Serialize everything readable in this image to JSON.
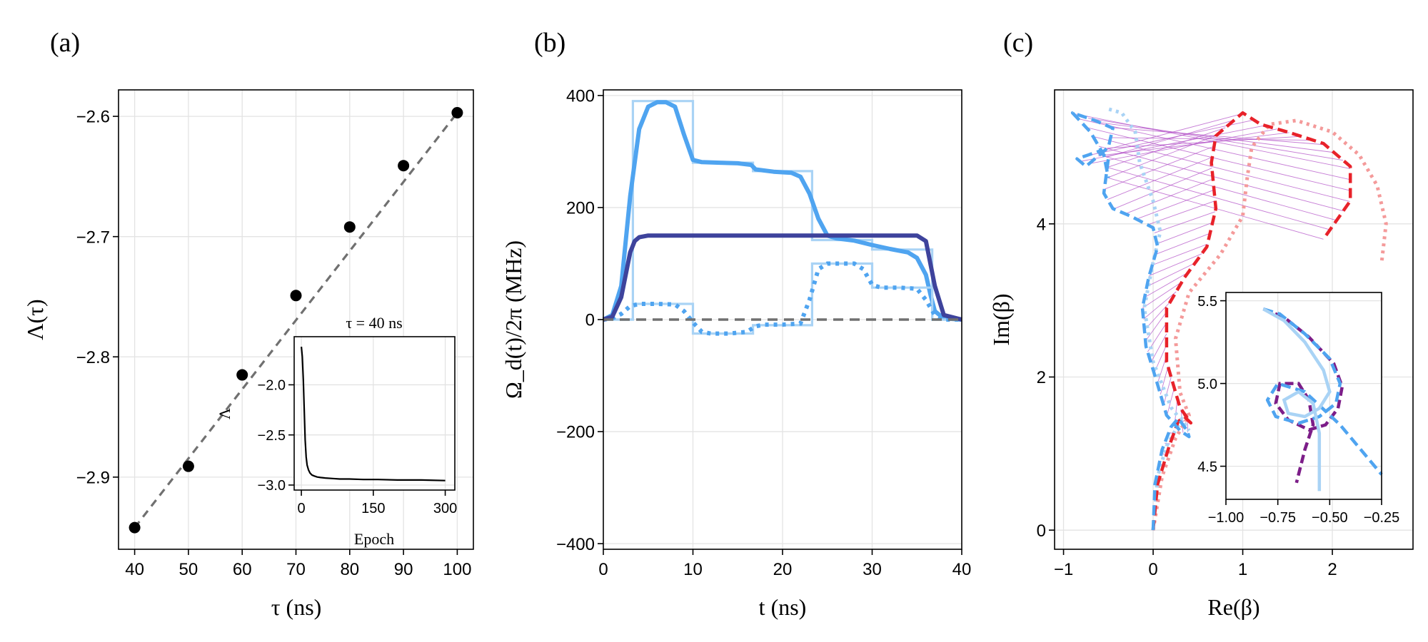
{
  "colors": {
    "blue": "#4fa4f0",
    "light_blue": "#a9d3f5",
    "dark_blue": "#3e439c",
    "red": "#e8222a",
    "light_red": "#f49a9a",
    "purple": "#7c1d88",
    "magenta_lines": "#b352c8",
    "gray_dash": "#707070"
  },
  "chart_data": [
    {
      "panel_label": "(a)",
      "type": "scatter",
      "xlabel": "τ (ns)",
      "ylabel": "Λ(τ)",
      "xlim": [
        37,
        103
      ],
      "ylim": [
        -2.96,
        -2.578
      ],
      "xticks": [
        40,
        50,
        60,
        70,
        80,
        90,
        100
      ],
      "xtick_labels": [
        "40",
        "50",
        "60",
        "70",
        "80",
        "90",
        "100"
      ],
      "yticks": [
        -2.9,
        -2.8,
        -2.7,
        -2.6
      ],
      "ytick_labels": [
        "−2.9",
        "−2.8",
        "−2.7",
        "−2.6"
      ],
      "x": [
        40,
        50,
        60,
        70,
        80,
        90,
        100
      ],
      "y": [
        -2.942,
        -2.891,
        -2.815,
        -2.749,
        -2.692,
        -2.641,
        -2.597
      ],
      "fit_line": {
        "x": [
          40,
          100
        ],
        "y": [
          -2.942,
          -2.597
        ],
        "style": "dashed"
      },
      "inset": {
        "title": "τ = 40 ns",
        "xlabel": "Epoch",
        "ylabel": "Λ",
        "xlim": [
          -15,
          320
        ],
        "ylim": [
          -3.05,
          -1.52
        ],
        "xticks": [
          0,
          150,
          300
        ],
        "xtick_labels": [
          "0",
          "150",
          "300"
        ],
        "yticks": [
          -3.0,
          -2.5,
          -2.0
        ],
        "ytick_labels": [
          "−3.0",
          "−2.5",
          "−2.0"
        ],
        "curve_x": [
          0,
          2,
          4,
          6,
          8,
          10,
          12,
          15,
          18,
          22,
          27,
          33,
          40,
          50,
          65,
          80,
          100,
          130,
          160,
          200,
          250,
          300
        ],
        "curve_y": [
          -1.62,
          -1.72,
          -1.95,
          -2.25,
          -2.55,
          -2.72,
          -2.8,
          -2.85,
          -2.88,
          -2.9,
          -2.91,
          -2.92,
          -2.925,
          -2.93,
          -2.935,
          -2.94,
          -2.94,
          -2.945,
          -2.945,
          -2.95,
          -2.95,
          -2.955
        ]
      }
    },
    {
      "panel_label": "(b)",
      "type": "line",
      "xlabel": "t (ns)",
      "ylabel": "Ω_d(t)/2π (MHz)",
      "xlim": [
        0,
        40
      ],
      "ylim": [
        -410,
        410
      ],
      "xticks": [
        0,
        10,
        20,
        30,
        40
      ],
      "xtick_labels": [
        "0",
        "10",
        "20",
        "30",
        "40"
      ],
      "yticks": [
        -400,
        -200,
        0,
        200,
        400
      ],
      "ytick_labels": [
        "−400",
        "−200",
        "0",
        "200",
        "400"
      ],
      "series": [
        {
          "name": "real piecewise",
          "style": "light-step",
          "x": [
            0,
            3.3,
            3.3,
            10,
            10,
            16.7,
            16.7,
            23.3,
            23.3,
            30,
            30,
            36.7,
            36.7,
            40
          ],
          "y": [
            0,
            0,
            390,
            390,
            280,
            280,
            265,
            265,
            142,
            142,
            125,
            125,
            0,
            0
          ]
        },
        {
          "name": "real smooth",
          "style": "blue-solid",
          "x": [
            0,
            1,
            2,
            3,
            4,
            5,
            6,
            7,
            8,
            9,
            10,
            11,
            13,
            15,
            16.5,
            17,
            19,
            21,
            22,
            23,
            24,
            25,
            26,
            28,
            30,
            32,
            34,
            35,
            36,
            36.5,
            37,
            38,
            40
          ],
          "y": [
            0,
            8,
            60,
            220,
            340,
            380,
            388,
            388,
            380,
            330,
            285,
            281,
            280,
            279,
            276,
            268,
            264,
            262,
            255,
            225,
            180,
            150,
            145,
            141,
            133,
            126,
            120,
            110,
            80,
            45,
            15,
            2,
            0
          ]
        },
        {
          "name": "imag piecewise",
          "style": "light-step",
          "x": [
            0,
            3.3,
            3.3,
            10,
            10,
            16.7,
            16.7,
            23.3,
            23.3,
            30,
            30,
            36.7,
            36.7,
            40
          ],
          "y": [
            0,
            0,
            28,
            28,
            -25,
            -25,
            -10,
            -10,
            100,
            100,
            57,
            57,
            0,
            0
          ]
        },
        {
          "name": "imag smooth",
          "style": "blue-dotted",
          "x": [
            0,
            1,
            2,
            3,
            4,
            6,
            8,
            9,
            10,
            11,
            12,
            14,
            16,
            17,
            18,
            20,
            22,
            23,
            24,
            25,
            26,
            28,
            29,
            30,
            31,
            33,
            35,
            36,
            37,
            38,
            40
          ],
          "y": [
            0,
            2,
            10,
            24,
            28,
            28,
            27,
            15,
            -5,
            -22,
            -25,
            -25,
            -22,
            -12,
            -9,
            -9,
            -7,
            35,
            90,
            100,
            100,
            100,
            90,
            62,
            57,
            57,
            55,
            35,
            8,
            0,
            0
          ]
        },
        {
          "name": "constant amplitude",
          "style": "dark-solid",
          "x": [
            0,
            1,
            2,
            3,
            3.5,
            4,
            5,
            6,
            35,
            36,
            37,
            38,
            40
          ],
          "y": [
            0,
            5,
            40,
            120,
            140,
            147,
            150,
            150,
            150,
            140,
            60,
            8,
            0
          ]
        },
        {
          "name": "zero",
          "style": "gray-dashed",
          "x": [
            0,
            40
          ],
          "y": [
            0,
            0
          ]
        }
      ]
    },
    {
      "panel_label": "(c)",
      "type": "line",
      "xlabel": "Re(β)",
      "ylabel": "Im(β)",
      "xlim": [
        -1.1,
        2.9
      ],
      "ylim": [
        -0.25,
        5.75
      ],
      "xticks": [
        -1,
        0,
        1,
        2
      ],
      "xtick_labels": [
        "−1",
        "0",
        "1",
        "2"
      ],
      "yticks": [
        0,
        2,
        4
      ],
      "ytick_labels": [
        "0",
        "2",
        "4"
      ],
      "series": [
        {
          "name": "blue trajectory",
          "style": "blue-dashed",
          "points": [
            [
              0,
              0
            ],
            [
              0.02,
              0.6
            ],
            [
              0.1,
              1.05
            ],
            [
              0.2,
              1.35
            ],
            [
              0.28,
              1.46
            ],
            [
              0.38,
              1.3
            ],
            [
              0.4,
              1.22
            ],
            [
              0.3,
              1.3
            ],
            [
              0.15,
              1.5
            ],
            [
              0.05,
              1.9
            ],
            [
              -0.08,
              2.4
            ],
            [
              -0.12,
              2.9
            ],
            [
              -0.05,
              3.3
            ],
            [
              0.05,
              3.7
            ],
            [
              0.0,
              3.95
            ],
            [
              -0.25,
              4.1
            ],
            [
              -0.45,
              4.2
            ],
            [
              -0.55,
              4.4
            ],
            [
              -0.5,
              4.85
            ],
            [
              -0.6,
              4.95
            ],
            [
              -0.85,
              4.85
            ],
            [
              -0.75,
              4.75
            ],
            [
              -0.5,
              5.0
            ],
            [
              -0.45,
              5.25
            ],
            [
              -0.65,
              5.35
            ],
            [
              -0.9,
              5.45
            ],
            [
              -0.7,
              5.2
            ],
            [
              -0.55,
              4.9
            ],
            [
              -0.5,
              4.6
            ]
          ]
        },
        {
          "name": "light blue trajectory",
          "style": "light-blue-dotted",
          "points": [
            [
              0,
              0
            ],
            [
              0.05,
              0.7
            ],
            [
              0.15,
              1.1
            ],
            [
              0.32,
              1.45
            ],
            [
              0.4,
              1.3
            ],
            [
              0.2,
              1.6
            ],
            [
              0.0,
              2.2
            ],
            [
              -0.1,
              2.9
            ],
            [
              0.0,
              3.5
            ],
            [
              0.08,
              3.9
            ],
            [
              0.0,
              4.3
            ],
            [
              -0.15,
              4.8
            ],
            [
              -0.2,
              5.2
            ],
            [
              -0.35,
              5.45
            ],
            [
              -0.5,
              5.5
            ]
          ]
        },
        {
          "name": "red trajectory",
          "style": "red-dashed",
          "points": [
            [
              0,
              0
            ],
            [
              0.05,
              0.6
            ],
            [
              0.18,
              1.1
            ],
            [
              0.28,
              1.42
            ],
            [
              0.35,
              1.48
            ],
            [
              0.42,
              1.4
            ],
            [
              0.3,
              1.6
            ],
            [
              0.15,
              2.2
            ],
            [
              0.15,
              2.9
            ],
            [
              0.35,
              3.3
            ],
            [
              0.6,
              3.7
            ],
            [
              0.7,
              4.2
            ],
            [
              0.65,
              4.8
            ],
            [
              0.7,
              5.15
            ],
            [
              0.9,
              5.35
            ],
            [
              1.0,
              5.45
            ],
            [
              1.2,
              5.3
            ],
            [
              1.5,
              5.2
            ],
            [
              1.9,
              5.05
            ],
            [
              2.2,
              4.75
            ],
            [
              2.2,
              4.3
            ],
            [
              1.9,
              3.8
            ]
          ]
        },
        {
          "name": "light red trajectory",
          "style": "light-red-dotted",
          "points": [
            [
              0,
              0
            ],
            [
              0.1,
              0.7
            ],
            [
              0.25,
              1.2
            ],
            [
              0.4,
              1.5
            ],
            [
              0.3,
              1.8
            ],
            [
              0.25,
              2.5
            ],
            [
              0.4,
              3.1
            ],
            [
              0.75,
              3.6
            ],
            [
              1.0,
              4.1
            ],
            [
              1.05,
              4.6
            ],
            [
              1.1,
              5.0
            ],
            [
              1.3,
              5.3
            ],
            [
              1.6,
              5.35
            ],
            [
              2.0,
              5.2
            ],
            [
              2.3,
              4.9
            ],
            [
              2.5,
              4.5
            ],
            [
              2.6,
              4.0
            ],
            [
              2.55,
              3.5
            ]
          ]
        }
      ],
      "inset": {
        "xlim": [
          -1.0,
          -0.25
        ],
        "ylim": [
          4.3,
          5.55
        ],
        "xticks": [
          -1.0,
          -0.75,
          -0.5,
          -0.25
        ],
        "xtick_labels": [
          "−1.00",
          "−0.75",
          "−0.50",
          "−0.25"
        ],
        "yticks": [
          4.5,
          5.0,
          5.5
        ],
        "ytick_labels": [
          "4.5",
          "5.0",
          "5.5"
        ],
        "series": [
          {
            "name": "purple",
            "style": "purple-dashed",
            "points": [
              [
                -0.82,
                5.45
              ],
              [
                -0.72,
                5.4
              ],
              [
                -0.6,
                5.28
              ],
              [
                -0.48,
                5.12
              ],
              [
                -0.44,
                4.98
              ],
              [
                -0.46,
                4.85
              ],
              [
                -0.52,
                4.75
              ],
              [
                -0.6,
                4.72
              ],
              [
                -0.7,
                4.78
              ],
              [
                -0.76,
                4.88
              ],
              [
                -0.74,
                5.0
              ],
              [
                -0.65,
                5.0
              ],
              [
                -0.6,
                4.9
              ],
              [
                -0.58,
                4.75
              ],
              [
                -0.62,
                4.6
              ],
              [
                -0.66,
                4.4
              ]
            ]
          },
          {
            "name": "blue",
            "style": "blue-dashed",
            "points": [
              [
                -0.82,
                5.45
              ],
              [
                -0.74,
                5.42
              ],
              [
                -0.62,
                5.3
              ],
              [
                -0.5,
                5.15
              ],
              [
                -0.45,
                5.0
              ],
              [
                -0.47,
                4.88
              ],
              [
                -0.55,
                4.8
              ],
              [
                -0.65,
                4.76
              ],
              [
                -0.76,
                4.8
              ],
              [
                -0.8,
                4.9
              ],
              [
                -0.75,
                5.0
              ],
              [
                -0.62,
                4.95
              ],
              [
                -0.45,
                4.75
              ],
              [
                -0.25,
                4.45
              ]
            ]
          },
          {
            "name": "light blue",
            "style": "light-blue-solid",
            "points": [
              [
                -0.82,
                5.45
              ],
              [
                -0.72,
                5.38
              ],
              [
                -0.62,
                5.25
              ],
              [
                -0.53,
                5.08
              ],
              [
                -0.5,
                4.95
              ],
              [
                -0.55,
                4.85
              ],
              [
                -0.62,
                4.8
              ],
              [
                -0.7,
                4.82
              ],
              [
                -0.72,
                4.9
              ],
              [
                -0.65,
                4.95
              ],
              [
                -0.58,
                4.88
              ],
              [
                -0.55,
                4.7
              ],
              [
                -0.55,
                4.55
              ],
              [
                -0.55,
                4.35
              ]
            ]
          }
        ]
      }
    }
  ]
}
